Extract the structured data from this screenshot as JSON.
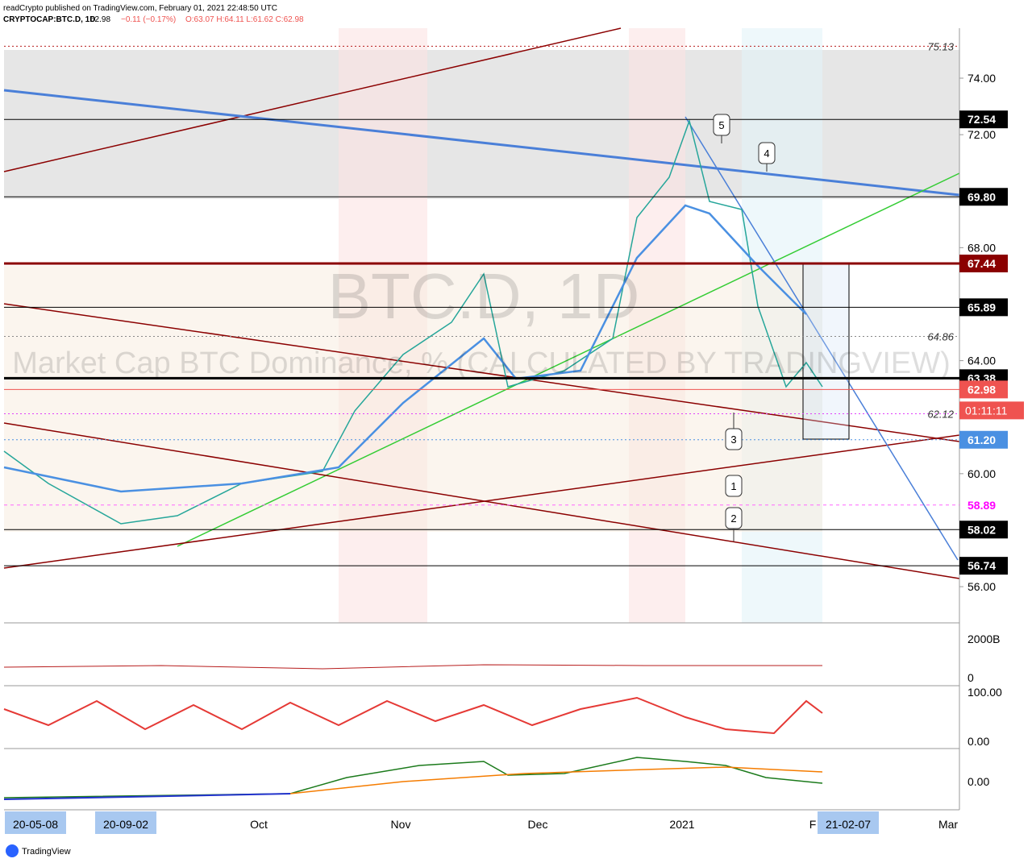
{
  "header": {
    "line1": "readCrypto published on TradingView.com, February 01, 2021 22:48:50 UTC",
    "symbol": "CRYPTOCAP:BTC.D, 1D",
    "last": "62.98",
    "change": "−0.11 (−0.17%)",
    "ohlc": "O:63.07 H:64.11 L:61.62 C:62.98"
  },
  "watermark": {
    "symbol": "BTC.D, 1D",
    "description": "Market Cap BTC Dominance, % (CALCULATED BY TRADINGVIEW)"
  },
  "price_axis": {
    "ticks": [
      {
        "value": 74,
        "label": "74.00"
      },
      {
        "value": 72,
        "label": "72.00"
      },
      {
        "value": 68,
        "label": "68.00"
      },
      {
        "value": 64,
        "label": "64.00"
      },
      {
        "value": 60,
        "label": "60.00"
      },
      {
        "value": 56,
        "label": "56.00"
      }
    ]
  },
  "levels": [
    {
      "value": 75.13,
      "label": "75.13",
      "style": "note",
      "color": "#b71c1c"
    },
    {
      "value": 72.54,
      "label": "72.54",
      "style": "box",
      "color": "#000000"
    },
    {
      "value": 69.8,
      "label": "69.80",
      "style": "box",
      "color": "#000000"
    },
    {
      "value": 67.44,
      "label": "67.44",
      "style": "box",
      "color": "#8b0000"
    },
    {
      "value": 65.89,
      "label": "65.89",
      "style": "box",
      "color": "#000000"
    },
    {
      "value": 64.86,
      "label": "64.86",
      "style": "note",
      "color": "#888888"
    },
    {
      "value": 63.38,
      "label": "63.38",
      "style": "box",
      "color": "#000000"
    },
    {
      "value": 62.98,
      "label": "62.98",
      "style": "box",
      "color": "#ef5350"
    },
    {
      "value": 62.12,
      "label": "62.12",
      "style": "note",
      "color": "#e040fb"
    },
    {
      "value": 61.2,
      "label": "61.20",
      "style": "box",
      "color": "#4a90e2"
    },
    {
      "value": 58.89,
      "label": "58.89",
      "style": "pink",
      "color": "#ff00ff"
    },
    {
      "value": 58.02,
      "label": "58.02",
      "style": "box",
      "color": "#000000"
    },
    {
      "value": 56.74,
      "label": "56.74",
      "style": "box",
      "color": "#000000"
    }
  ],
  "countdown": "01:11:11",
  "wave_labels": [
    "1",
    "2",
    "3",
    "4",
    "5"
  ],
  "volume_axis": [
    "2000B",
    "0"
  ],
  "oscillator_axis": [
    "100.00",
    "0.00"
  ],
  "lower_axis": [
    "0.00"
  ],
  "time_axis": [
    "20-05-08",
    "20-09-02",
    "Oct",
    "Nov",
    "Dec",
    "2021",
    "F",
    "21-02-07",
    "Mar"
  ],
  "footer": "TradingView"
}
